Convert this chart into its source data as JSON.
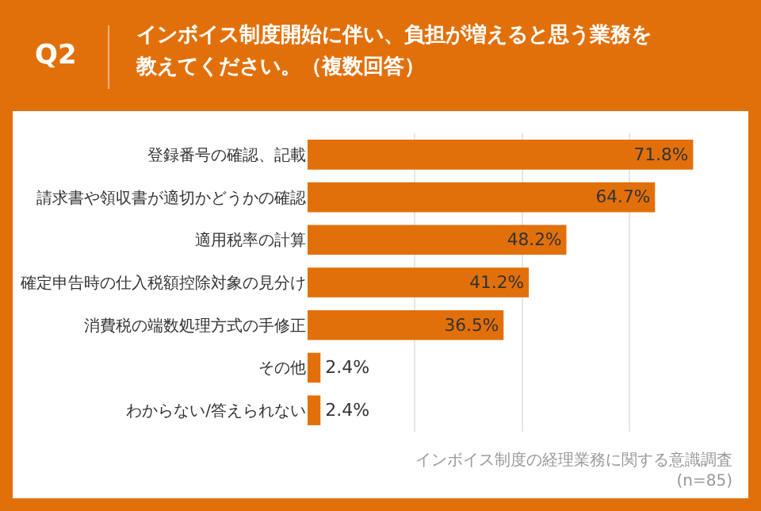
{
  "chart_data": {
    "type": "bar",
    "orientation": "horizontal",
    "title": "Q2",
    "subtitle": "インボイス制度開始に伴い、負担が増えると思う業務を教えてください。（複数回答）",
    "categories": [
      "登録番号の確認、記載",
      "請求書や領収書が適切かどうかの確認",
      "適用税率の計算",
      "確定申告時の仕入税額控除対象の見分け",
      "消費税の端数処理方式の手修正",
      "その他",
      "わからない/答えられない"
    ],
    "values": [
      71.8,
      64.7,
      48.2,
      41.2,
      36.5,
      2.4,
      2.4
    ],
    "value_labels": [
      "71.8%",
      "64.7%",
      "48.2%",
      "41.2%",
      "36.5%",
      "2.4%",
      "2.4%"
    ],
    "color": "#e2700a",
    "grid": "x",
    "tick_labels": "y",
    "annotations": [
      "インボイス制度の経理業務に関する意識調査",
      "(n=85)"
    ]
  }
}
